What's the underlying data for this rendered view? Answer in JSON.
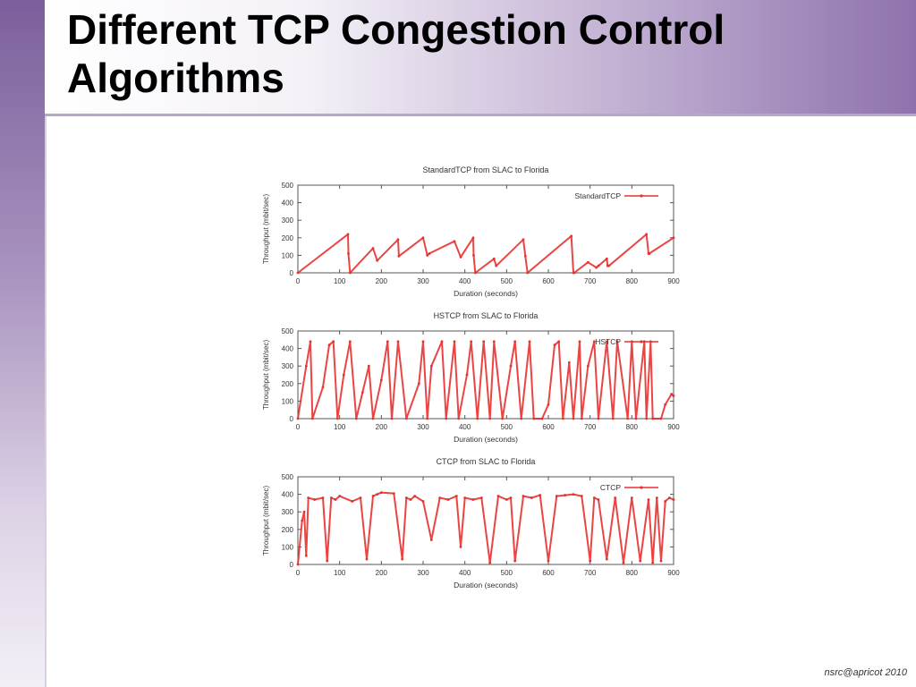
{
  "slide": {
    "title_line1": "Different TCP Congestion Control",
    "title_line2": "Algorithms",
    "footer": "nsrc@apricot 2010",
    "colors": {
      "header_accent": "#8e72ad",
      "series": "#e8312f",
      "axis": "#555555"
    }
  },
  "chart_data": [
    {
      "type": "line",
      "title": "StandardTCP from SLAC to Florida",
      "xlabel": "Duration (seconds)",
      "ylabel": "Throughput (mbit/sec)",
      "xlim": [
        0,
        900
      ],
      "ylim": [
        0,
        500
      ],
      "xticks": [
        0,
        100,
        200,
        300,
        400,
        500,
        600,
        700,
        800,
        900
      ],
      "yticks": [
        0,
        100,
        200,
        300,
        400,
        500
      ],
      "grid": false,
      "legend": "top-right",
      "series": [
        {
          "name": "StandardTCP",
          "color": "#e8312f",
          "x": [
            0,
            120,
            121,
            125,
            180,
            190,
            240,
            242,
            300,
            310,
            315,
            375,
            390,
            420,
            421,
            425,
            470,
            475,
            540,
            545,
            550,
            655,
            660,
            662,
            695,
            715,
            720,
            740,
            742,
            745,
            835,
            840,
            842,
            900
          ],
          "y": [
            0,
            220,
            110,
            0,
            140,
            70,
            190,
            95,
            200,
            100,
            110,
            180,
            90,
            200,
            100,
            0,
            80,
            40,
            190,
            95,
            0,
            210,
            0,
            0,
            60,
            30,
            40,
            80,
            40,
            40,
            220,
            110,
            110,
            200
          ]
        }
      ]
    },
    {
      "type": "line",
      "title": "HSTCP from SLAC to Florida",
      "xlabel": "Duration (seconds)",
      "ylabel": "Throughput (mbit/sec)",
      "xlim": [
        0,
        900
      ],
      "ylim": [
        0,
        500
      ],
      "xticks": [
        0,
        100,
        200,
        300,
        400,
        500,
        600,
        700,
        800,
        900
      ],
      "yticks": [
        0,
        100,
        200,
        300,
        400,
        500
      ],
      "grid": false,
      "legend": "top-right",
      "series": [
        {
          "name": "HSTCP",
          "color": "#e8312f",
          "x": [
            0,
            20,
            30,
            35,
            60,
            75,
            85,
            95,
            110,
            125,
            140,
            155,
            170,
            180,
            200,
            215,
            225,
            240,
            260,
            290,
            300,
            310,
            320,
            345,
            355,
            375,
            385,
            405,
            415,
            430,
            445,
            460,
            470,
            490,
            510,
            520,
            535,
            555,
            565,
            585,
            600,
            615,
            625,
            635,
            650,
            660,
            675,
            680,
            695,
            710,
            720,
            740,
            755,
            765,
            790,
            800,
            810,
            830,
            835,
            845,
            850,
            870,
            880,
            895,
            900
          ],
          "y": [
            0,
            300,
            440,
            0,
            180,
            420,
            440,
            0,
            250,
            440,
            0,
            150,
            300,
            0,
            220,
            440,
            0,
            440,
            0,
            200,
            440,
            0,
            300,
            440,
            0,
            440,
            0,
            250,
            440,
            0,
            440,
            0,
            440,
            0,
            300,
            440,
            0,
            440,
            0,
            0,
            80,
            420,
            440,
            0,
            320,
            0,
            440,
            0,
            300,
            440,
            0,
            440,
            0,
            440,
            0,
            440,
            0,
            440,
            0,
            440,
            0,
            0,
            80,
            140,
            130
          ]
        }
      ]
    },
    {
      "type": "line",
      "title": "CTCP from SLAC to Florida",
      "xlabel": "Duration (seconds)",
      "ylabel": "Throughput (mbit/sec)",
      "xlim": [
        0,
        900
      ],
      "ylim": [
        0,
        500
      ],
      "xticks": [
        0,
        100,
        200,
        300,
        400,
        500,
        600,
        700,
        800,
        900
      ],
      "yticks": [
        0,
        100,
        200,
        300,
        400,
        500
      ],
      "grid": false,
      "legend": "top-right",
      "series": [
        {
          "name": "CTCP",
          "color": "#e8312f",
          "x": [
            0,
            10,
            15,
            20,
            25,
            40,
            60,
            70,
            80,
            90,
            100,
            130,
            150,
            165,
            180,
            190,
            200,
            230,
            250,
            260,
            270,
            280,
            300,
            320,
            340,
            360,
            380,
            390,
            400,
            420,
            440,
            460,
            480,
            500,
            510,
            520,
            540,
            560,
            580,
            600,
            620,
            640,
            660,
            680,
            700,
            710,
            720,
            740,
            760,
            780,
            800,
            820,
            840,
            850,
            860,
            870,
            880,
            890,
            900
          ],
          "y": [
            0,
            250,
            300,
            50,
            380,
            370,
            380,
            20,
            380,
            370,
            390,
            360,
            380,
            30,
            390,
            400,
            410,
            405,
            30,
            380,
            370,
            390,
            360,
            140,
            380,
            370,
            390,
            100,
            380,
            370,
            380,
            10,
            390,
            370,
            380,
            20,
            390,
            380,
            395,
            20,
            390,
            395,
            400,
            390,
            20,
            380,
            370,
            30,
            380,
            10,
            380,
            20,
            370,
            10,
            380,
            20,
            360,
            380,
            370
          ]
        }
      ]
    }
  ]
}
